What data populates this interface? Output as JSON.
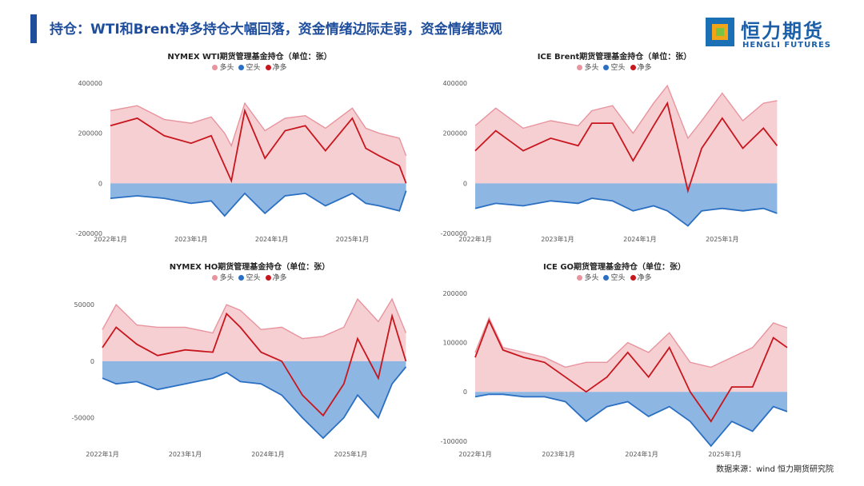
{
  "header": {
    "title": "持仓：WTI和Brent净多持仓大幅回落，资金情绪边际走弱，资金情绪悲观"
  },
  "logo": {
    "cn": "恒力期货",
    "en": "HENGLI FUTURES"
  },
  "source": "数据来源：wind 恒力期货研究院",
  "colors": {
    "long": "#e8949e",
    "long_fill": "#f6cfd3",
    "short": "#2a6fc2",
    "short_fill": "#8eb6e3",
    "net": "#c8161d",
    "title": "#1f4e9c"
  },
  "legend": [
    {
      "label": "多头",
      "color": "#e8949e"
    },
    {
      "label": "空头",
      "color": "#2a6fc2"
    },
    {
      "label": "净多",
      "color": "#c8161d"
    }
  ],
  "chart_data": [
    {
      "type": "area",
      "title": "NYMEX WTI期货管理基金持仓（单位：张）",
      "x_range": [
        "2022-01",
        "2025-10"
      ],
      "x_ticks": [
        "2022年1月",
        "2023年1月",
        "2024年1月",
        "2025年1月"
      ],
      "y_ticks": [
        "400000",
        "200000",
        "0",
        "-200000"
      ],
      "ylim": [
        -200000,
        400000
      ],
      "series": [
        {
          "name": "多头",
          "x": [
            "2022-01",
            "2022-05",
            "2022-09",
            "2023-01",
            "2023-04",
            "2023-06",
            "2023-07",
            "2023-09",
            "2023-12",
            "2024-03",
            "2024-06",
            "2024-09",
            "2025-01",
            "2025-03",
            "2025-05",
            "2025-08",
            "2025-09"
          ],
          "values": [
            290000,
            310000,
            255000,
            240000,
            265000,
            200000,
            150000,
            320000,
            210000,
            260000,
            270000,
            220000,
            300000,
            220000,
            200000,
            180000,
            110000
          ]
        },
        {
          "name": "空头",
          "x": [
            "2022-01",
            "2022-05",
            "2022-09",
            "2023-01",
            "2023-04",
            "2023-06",
            "2023-07",
            "2023-09",
            "2023-12",
            "2024-03",
            "2024-06",
            "2024-09",
            "2025-01",
            "2025-03",
            "2025-05",
            "2025-08",
            "2025-09"
          ],
          "values": [
            -60000,
            -50000,
            -60000,
            -80000,
            -70000,
            -130000,
            -100000,
            -40000,
            -120000,
            -50000,
            -40000,
            -90000,
            -40000,
            -80000,
            -90000,
            -110000,
            -30000
          ]
        },
        {
          "name": "净多",
          "x": [
            "2022-01",
            "2022-05",
            "2022-09",
            "2023-01",
            "2023-04",
            "2023-06",
            "2023-07",
            "2023-09",
            "2023-12",
            "2024-03",
            "2024-06",
            "2024-09",
            "2025-01",
            "2025-03",
            "2025-05",
            "2025-08",
            "2025-09"
          ],
          "values": [
            230000,
            260000,
            190000,
            160000,
            190000,
            70000,
            10000,
            290000,
            100000,
            210000,
            230000,
            130000,
            260000,
            140000,
            110000,
            70000,
            0
          ]
        }
      ]
    },
    {
      "type": "area",
      "title": "ICE Brent期货管理基金持仓（单位：张）",
      "x_range": [
        "2022-01",
        "2025-10"
      ],
      "x_ticks": [
        "2022年1月",
        "2023年1月",
        "2024年1月",
        "2025年1月"
      ],
      "y_ticks": [
        "400000",
        "200000",
        "0",
        "-200000"
      ],
      "ylim": [
        -200000,
        400000
      ],
      "series": [
        {
          "name": "多头",
          "x": [
            "2022-01",
            "2022-04",
            "2022-08",
            "2022-12",
            "2023-04",
            "2023-06",
            "2023-09",
            "2023-12",
            "2024-03",
            "2024-05",
            "2024-08",
            "2024-10",
            "2025-01",
            "2025-04",
            "2025-07",
            "2025-09"
          ],
          "values": [
            230000,
            300000,
            220000,
            250000,
            230000,
            290000,
            310000,
            200000,
            320000,
            390000,
            180000,
            250000,
            360000,
            250000,
            320000,
            330000
          ]
        },
        {
          "name": "空头",
          "x": [
            "2022-01",
            "2022-04",
            "2022-08",
            "2022-12",
            "2023-04",
            "2023-06",
            "2023-09",
            "2023-12",
            "2024-03",
            "2024-05",
            "2024-08",
            "2024-10",
            "2025-01",
            "2025-04",
            "2025-07",
            "2025-09"
          ],
          "values": [
            -100000,
            -80000,
            -90000,
            -70000,
            -80000,
            -60000,
            -70000,
            -110000,
            -90000,
            -110000,
            -170000,
            -110000,
            -100000,
            -110000,
            -100000,
            -120000
          ]
        },
        {
          "name": "净多",
          "x": [
            "2022-01",
            "2022-04",
            "2022-08",
            "2022-12",
            "2023-04",
            "2023-06",
            "2023-09",
            "2023-12",
            "2024-03",
            "2024-05",
            "2024-08",
            "2024-10",
            "2025-01",
            "2025-04",
            "2025-07",
            "2025-09"
          ],
          "values": [
            130000,
            210000,
            130000,
            180000,
            150000,
            240000,
            240000,
            90000,
            230000,
            320000,
            -30000,
            140000,
            260000,
            140000,
            220000,
            150000
          ]
        }
      ]
    },
    {
      "type": "area",
      "title": "NYMEX HO期货管理基金持仓（单位：张）",
      "x_range": [
        "2022-01",
        "2025-10"
      ],
      "x_ticks": [
        "2022年1月",
        "2023年1月",
        "2024年1月",
        "2025年1月"
      ],
      "y_ticks": [
        "50000",
        "0",
        "-50000"
      ],
      "ylim": [
        -75000,
        60000
      ],
      "series": [
        {
          "name": "多头",
          "x": [
            "2022-01",
            "2022-03",
            "2022-06",
            "2022-09",
            "2023-01",
            "2023-05",
            "2023-07",
            "2023-09",
            "2023-12",
            "2024-03",
            "2024-06",
            "2024-09",
            "2024-12",
            "2025-02",
            "2025-05",
            "2025-07",
            "2025-09"
          ],
          "values": [
            28000,
            50000,
            32000,
            30000,
            30000,
            25000,
            50000,
            45000,
            28000,
            30000,
            20000,
            22000,
            30000,
            55000,
            35000,
            55000,
            25000
          ]
        },
        {
          "name": "空头",
          "x": [
            "2022-01",
            "2022-03",
            "2022-06",
            "2022-09",
            "2023-01",
            "2023-05",
            "2023-07",
            "2023-09",
            "2023-12",
            "2024-03",
            "2024-06",
            "2024-09",
            "2024-12",
            "2025-02",
            "2025-05",
            "2025-07",
            "2025-09"
          ],
          "values": [
            -15000,
            -20000,
            -18000,
            -25000,
            -20000,
            -15000,
            -10000,
            -18000,
            -20000,
            -30000,
            -50000,
            -68000,
            -50000,
            -30000,
            -50000,
            -20000,
            -5000
          ]
        },
        {
          "name": "净多",
          "x": [
            "2022-01",
            "2022-03",
            "2022-06",
            "2022-09",
            "2023-01",
            "2023-05",
            "2023-07",
            "2023-09",
            "2023-12",
            "2024-03",
            "2024-06",
            "2024-09",
            "2024-12",
            "2025-02",
            "2025-05",
            "2025-07",
            "2025-09"
          ],
          "values": [
            12000,
            30000,
            15000,
            5000,
            10000,
            8000,
            42000,
            30000,
            8000,
            0,
            -30000,
            -48000,
            -20000,
            20000,
            -15000,
            40000,
            0
          ]
        }
      ]
    },
    {
      "type": "area",
      "title": "ICE GO期货管理基金持仓（单位：张）",
      "x_range": [
        "2022-01",
        "2025-10"
      ],
      "x_ticks": [
        "2022年1月",
        "2023年1月",
        "2024年1月",
        "2025年1月"
      ],
      "y_ticks": [
        "200000",
        "100000",
        "0",
        "-100000"
      ],
      "ylim": [
        -110000,
        200000
      ],
      "series": [
        {
          "name": "多头",
          "x": [
            "2022-01",
            "2022-03",
            "2022-05",
            "2022-08",
            "2022-11",
            "2023-02",
            "2023-05",
            "2023-08",
            "2023-11",
            "2024-02",
            "2024-05",
            "2024-08",
            "2024-11",
            "2025-02",
            "2025-05",
            "2025-08",
            "2025-10"
          ],
          "values": [
            80000,
            150000,
            90000,
            80000,
            70000,
            50000,
            60000,
            60000,
            100000,
            80000,
            120000,
            60000,
            50000,
            70000,
            90000,
            140000,
            130000
          ]
        },
        {
          "name": "空头",
          "x": [
            "2022-01",
            "2022-03",
            "2022-05",
            "2022-08",
            "2022-11",
            "2023-02",
            "2023-05",
            "2023-08",
            "2023-11",
            "2024-02",
            "2024-05",
            "2024-08",
            "2024-11",
            "2025-02",
            "2025-05",
            "2025-08",
            "2025-10"
          ],
          "values": [
            -10000,
            -5000,
            -5000,
            -10000,
            -10000,
            -20000,
            -60000,
            -30000,
            -20000,
            -50000,
            -30000,
            -60000,
            -110000,
            -60000,
            -80000,
            -30000,
            -40000
          ]
        },
        {
          "name": "净多",
          "x": [
            "2022-01",
            "2022-03",
            "2022-05",
            "2022-08",
            "2022-11",
            "2023-02",
            "2023-05",
            "2023-08",
            "2023-11",
            "2024-02",
            "2024-05",
            "2024-08",
            "2024-11",
            "2025-02",
            "2025-05",
            "2025-08",
            "2025-10"
          ],
          "values": [
            70000,
            145000,
            85000,
            70000,
            60000,
            30000,
            0,
            30000,
            80000,
            30000,
            90000,
            0,
            -60000,
            10000,
            10000,
            110000,
            90000
          ]
        }
      ]
    }
  ]
}
